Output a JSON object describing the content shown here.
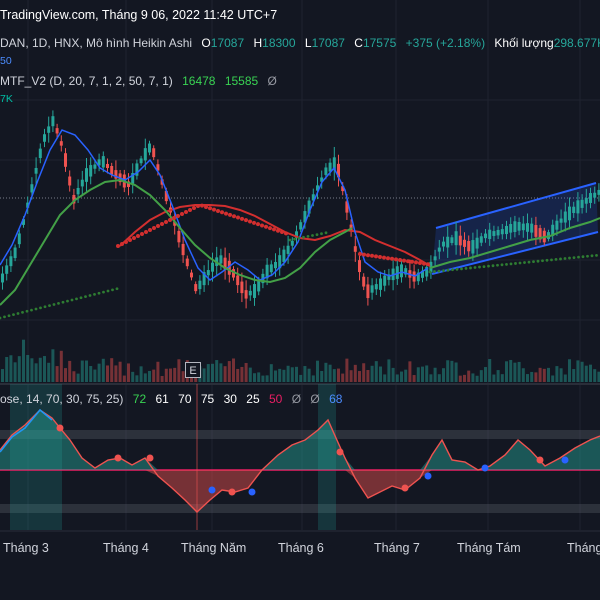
{
  "watermark": "TradingView.com, Tháng 9 06, 2022 11:42 UTC+7",
  "main": {
    "title": "DAN, 1D, HNX, Mô hình Heikin Ashi",
    "open_label": "O",
    "open": "17087",
    "high_label": "H",
    "high": "18300",
    "low_label": "L",
    "low": "17087",
    "close_label": "C",
    "close": "17575",
    "change": "+375 (+2.18%)",
    "volume_label": "Khối lượng",
    "volume": "298.677K",
    "sub_value": "50"
  },
  "indicator_mtf": {
    "name": "MTF_V2 (D, 20, 7, 1, 2, 50, 7, 1)",
    "v1": "16478",
    "v2": "15585",
    "v3": "Ø",
    "sub_value": "7K"
  },
  "oscillator": {
    "name": "ose, 14, 70, 30, 75, 25)",
    "v1": "72",
    "v2": "61",
    "v3": "70",
    "v4": "75",
    "v5": "30",
    "v6": "25",
    "v7": "50",
    "v8": "Ø",
    "v9": "Ø",
    "v10": "68"
  },
  "x_axis": [
    "Tháng 3",
    "Tháng 4",
    "Tháng Năm",
    "Tháng 6",
    "Tháng 7",
    "Tháng Tám",
    "Tháng"
  ],
  "event_badge": "E",
  "colors": {
    "background": "#131722",
    "candle_up": "#26a69a",
    "candle_down": "#ef5350",
    "ma_red": "#d32f2f",
    "ma_green": "#43a047",
    "dots_green": "#2e7d32",
    "channel": "#2962ff",
    "osc_line": "#ef5350",
    "osc_line_up": "#2196f3",
    "osc_mid": "#e91e63"
  }
}
